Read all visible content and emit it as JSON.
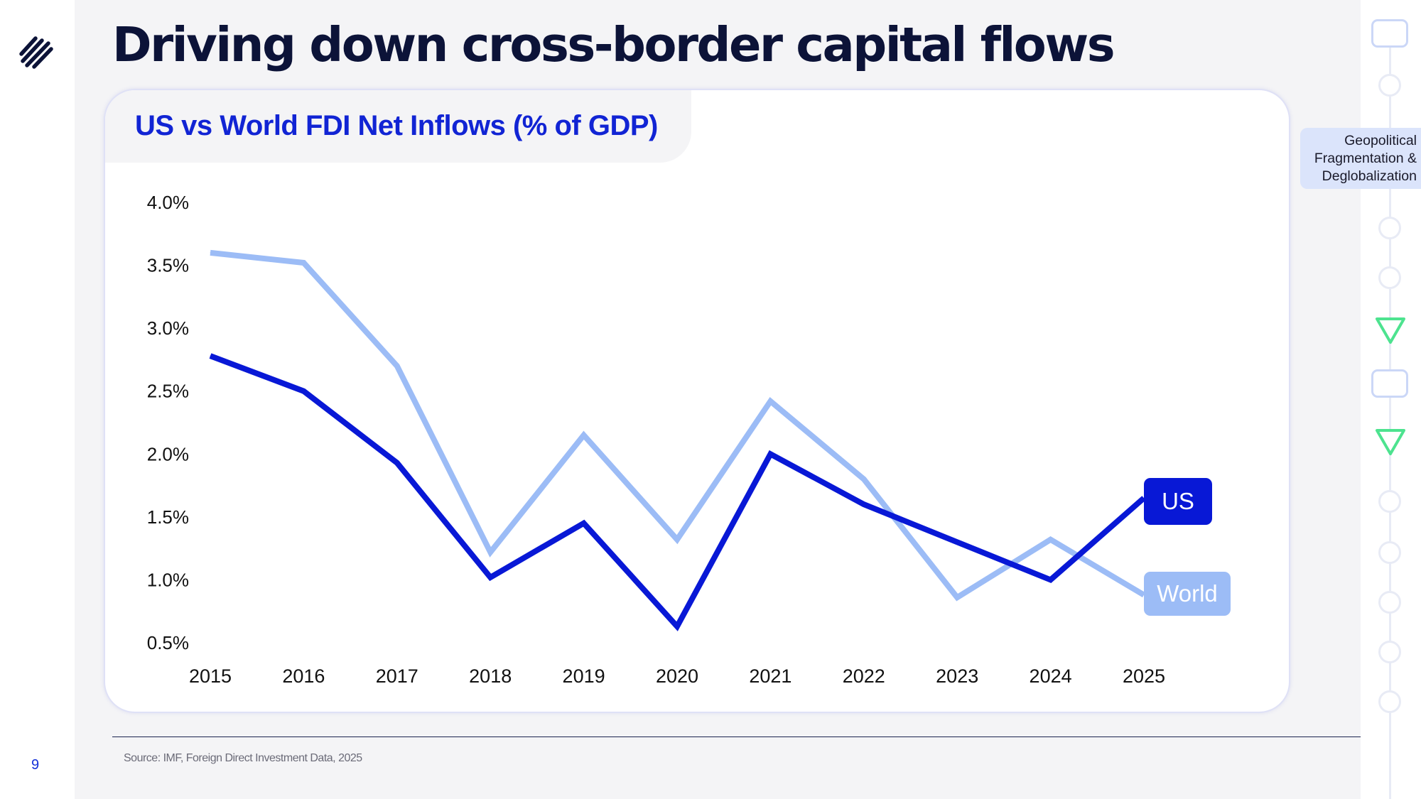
{
  "slide": {
    "title": "Driving down cross-border capital flows",
    "page_number": "9",
    "source": "Source: IMF, Foreign Direct Investment Data, 2025"
  },
  "sidebar": {
    "topic": {
      "line1": "Geopolitical",
      "line2": "Fragmentation &",
      "line3": "Deglobalization"
    },
    "nodes": [
      "square",
      "circle",
      "active-topic",
      "circle",
      "circle",
      "triangle",
      "square",
      "triangle",
      "circle",
      "circle",
      "circle",
      "circle",
      "circle"
    ]
  },
  "colors": {
    "us": "#0818d6",
    "world": "#9cbcf6",
    "title": "#0c1338",
    "accent": "#1124d4",
    "green": "#4de38f"
  },
  "chart_data": {
    "type": "line",
    "title": "US vs World FDI Net Inflows (% of GDP)",
    "x": [
      "2015",
      "2016",
      "2017",
      "2018",
      "2019",
      "2020",
      "2021",
      "2022",
      "2023",
      "2024",
      "2025"
    ],
    "y_ticks": [
      "4.0%",
      "3.5%",
      "3.0%",
      "2.5%",
      "2.0%",
      "1.5%",
      "1.0%",
      "0.5%"
    ],
    "ylim": [
      0.5,
      4.0
    ],
    "grid": false,
    "legend": "end-of-line labels",
    "series": [
      {
        "name": "US",
        "key": "us",
        "values": [
          2.78,
          2.5,
          1.93,
          1.02,
          1.45,
          0.63,
          2.0,
          1.6,
          1.3,
          1.0,
          1.65
        ]
      },
      {
        "name": "World",
        "key": "world",
        "values": [
          3.6,
          3.52,
          2.7,
          1.22,
          2.15,
          1.32,
          2.42,
          1.8,
          0.86,
          1.32,
          0.88
        ]
      }
    ]
  }
}
